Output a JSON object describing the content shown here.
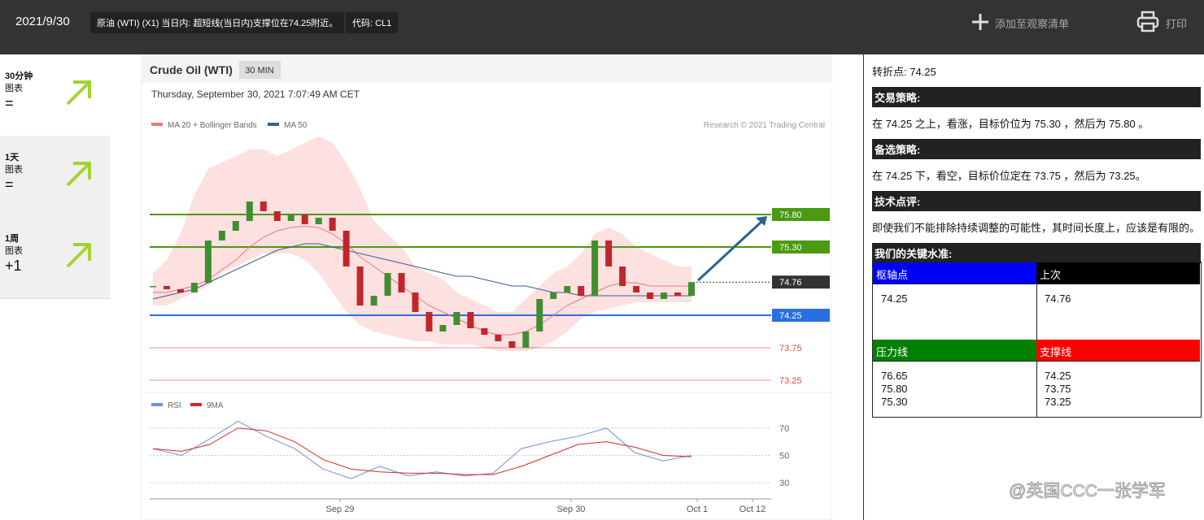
{
  "header": {
    "date": "2021/9/30",
    "headline": "原油 (WTI) (X1) 当日内: 超短线(当日内)支撑位在74.25附近。",
    "code": "代码: CL1",
    "watchlist": "添加至观察清单",
    "print": "打印"
  },
  "left_panel": [
    {
      "label": "30分钟",
      "sub": "图表",
      "signal": "="
    },
    {
      "label": "1天",
      "sub": "图表",
      "signal": "="
    },
    {
      "label": "1周",
      "sub": "图表",
      "signal": "+1"
    }
  ],
  "chart_data": {
    "type": "candlestick",
    "title": "Crude Oil (WTI)",
    "interval": "30 MIN",
    "timestamp": "Thursday, September 30, 2021 7:07:49 AM CET",
    "copyright": "Research © 2021 Trading Central",
    "ylim": [
      73.1,
      77.35
    ],
    "up_color": "#3f8f2f",
    "down_color": "#c0262b",
    "values": [
      74.7,
      74.65,
      74.6,
      74.75,
      75.4,
      75.55,
      75.7,
      76.0,
      75.85,
      75.7,
      75.8,
      75.65,
      75.75,
      75.55,
      75.0,
      74.4,
      74.55,
      74.9,
      74.6,
      74.3,
      74.0,
      74.1,
      74.3,
      74.05,
      73.95,
      73.85,
      73.75,
      74.0,
      74.5,
      74.6,
      74.7,
      74.55,
      75.4,
      75.0,
      74.7,
      74.6,
      74.5,
      74.6,
      74.55,
      74.76
    ],
    "overlays": [
      {
        "name": "MA 20 + Bollinger Bands",
        "color": "#e57b7b",
        "band_color": "#fde0e0",
        "values": [
          74.6,
          74.6,
          74.65,
          74.7,
          74.8,
          74.95,
          75.1,
          75.3,
          75.45,
          75.55,
          75.6,
          75.62,
          75.6,
          75.5,
          75.35,
          75.15,
          75.0,
          74.85,
          74.7,
          74.55,
          74.4,
          74.3,
          74.2,
          74.1,
          74.0,
          73.95,
          73.95,
          74.0,
          74.1,
          74.25,
          74.4,
          74.5,
          74.6,
          74.7,
          74.75,
          74.75,
          74.7,
          74.7,
          74.7,
          74.7
        ],
        "upper": [
          74.9,
          75.1,
          75.5,
          76.1,
          76.5,
          76.6,
          76.7,
          76.8,
          76.8,
          76.7,
          76.8,
          76.9,
          77.0,
          76.9,
          76.6,
          76.2,
          75.7,
          75.5,
          75.3,
          75.0,
          74.9,
          74.8,
          74.6,
          74.5,
          74.4,
          74.3,
          74.3,
          74.5,
          74.7,
          74.9,
          75.0,
          75.2,
          75.5,
          75.6,
          75.5,
          75.3,
          75.2,
          75.1,
          75.0,
          75.0
        ],
        "lower": [
          74.4,
          74.4,
          74.5,
          74.6,
          74.7,
          74.9,
          75.0,
          75.1,
          75.2,
          75.2,
          75.2,
          75.1,
          74.9,
          74.6,
          74.3,
          74.1,
          74.0,
          73.95,
          73.9,
          73.85,
          73.85,
          73.8,
          73.8,
          73.8,
          73.75,
          73.7,
          73.7,
          73.7,
          73.75,
          73.85,
          74.0,
          74.2,
          74.3,
          74.35,
          74.4,
          74.45,
          74.45,
          74.45,
          74.45,
          74.45
        ]
      },
      {
        "name": "MA 50",
        "color": "#3a5f8f",
        "values": [
          74.5,
          74.55,
          74.6,
          74.65,
          74.75,
          74.85,
          74.95,
          75.05,
          75.15,
          75.25,
          75.3,
          75.35,
          75.35,
          75.3,
          75.25,
          75.2,
          75.15,
          75.1,
          75.05,
          75.0,
          74.95,
          74.9,
          74.85,
          74.85,
          74.8,
          74.75,
          74.7,
          74.7,
          74.65,
          74.6,
          74.6,
          74.55,
          74.55,
          74.55,
          74.55,
          74.55,
          74.55,
          74.55,
          74.55,
          74.55
        ]
      }
    ],
    "levels": [
      {
        "value": {
          "value": 75.8,
          "label": "75.80"
        },
        "color": "#4a9a12",
        "box": true,
        "style": "solid"
      },
      {
        "value": {
          "value": 75.3,
          "label": "75.30"
        },
        "color": "#4a9a12",
        "box": true,
        "style": "solid"
      },
      {
        "value": 74.76,
        "color": "#333333",
        "box": true,
        "style": "dotted"
      },
      {
        "value": 74.25,
        "color": "#2a6fe0",
        "box": true,
        "style": "solid"
      },
      {
        "value": 73.75,
        "color": "#e24a4a",
        "box": false,
        "style": "thin"
      },
      {
        "value": 73.25,
        "color": "#e24a4a",
        "box": false,
        "style": "thin"
      }
    ],
    "rsi": {
      "ylim": [
        20,
        80
      ],
      "yticks": [
        70,
        50,
        30
      ],
      "series": [
        {
          "name": "RSI",
          "color": "#6f8fd8",
          "values": [
            55,
            50,
            62,
            75,
            64,
            55,
            40,
            33,
            42,
            35,
            38,
            35,
            37,
            55,
            60,
            64,
            70,
            52,
            46,
            50
          ]
        },
        {
          "name": "9MA",
          "color": "#d62828",
          "values": [
            55,
            53,
            58,
            70,
            68,
            60,
            47,
            40,
            38,
            37,
            37,
            36,
            36,
            42,
            50,
            58,
            60,
            56,
            50,
            49
          ]
        }
      ]
    },
    "x_labels": [
      "Sep 29",
      "Sep 30",
      "Oct 1",
      "Oct 12"
    ]
  },
  "right_panel": {
    "pivot": "转折点: 74.25",
    "sections": [
      {
        "heading": "交易策略:",
        "text": "在 74.25 之上，看涨，目标价位为 75.30 ，然后为 75.80 。"
      },
      {
        "heading": "备选策略:",
        "text": "在 74.25 下，看空，目标价位定在 73.75 ，然后为 73.25。"
      },
      {
        "heading": "技术点评:",
        "text": "即使我们不能排除持续调整的可能性，其时间长度上，应该是有限的。"
      }
    ],
    "key_heading": "我们的关键水准:",
    "table": [
      {
        "header": "枢轴点",
        "color": "#0000ff",
        "values": [
          "74.25"
        ]
      },
      {
        "header": "上次",
        "color": "#000000",
        "values": [
          "74.76"
        ]
      },
      {
        "header": "压力线",
        "color": "#008000",
        "values": [
          "76.65",
          "75.80",
          "75.30"
        ]
      },
      {
        "header": "支撑线",
        "color": "#ff0000",
        "values": [
          "74.25",
          "73.75",
          "73.25"
        ]
      }
    ]
  },
  "watermark": "@英国CCC一张学军"
}
